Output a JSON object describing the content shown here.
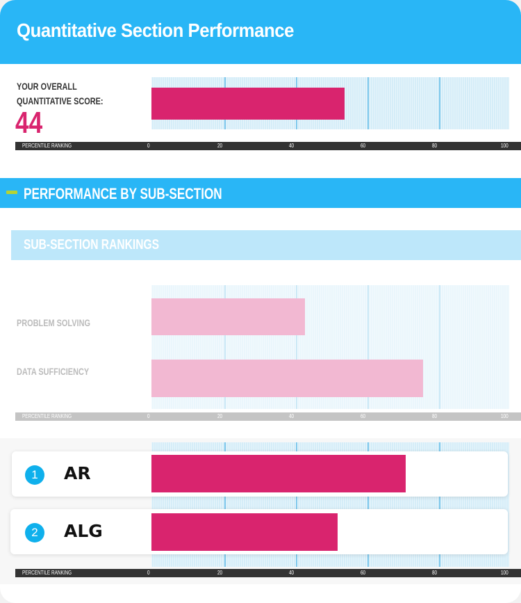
{
  "header": {
    "title": "Quantitative Section Performance"
  },
  "overall": {
    "label_line1": "YOUR OVERALL",
    "label_line2": "QUANTITATIVE SCORE:",
    "score": "44"
  },
  "section": {
    "title": "PERFORMANCE BY SUB-SECTION",
    "subtitle": "SUB-SECTION RANKINGS"
  },
  "axis": {
    "label": "PERCENTILE RANKING",
    "ticks": [
      "0",
      "20",
      "40",
      "60",
      "80",
      "100"
    ]
  },
  "colors": {
    "header": "#29b6f6",
    "bar": "#d9246e",
    "bar_faded": "#f2b8d2",
    "accent": "#b5d334"
  },
  "chart_data": [
    {
      "type": "bar",
      "orientation": "horizontal",
      "xlabel": "PERCENTILE RANKING",
      "xlim": [
        0,
        100
      ],
      "categories": [
        ""
      ],
      "values": [
        54
      ]
    },
    {
      "type": "bar",
      "orientation": "horizontal",
      "xlabel": "PERCENTILE RANKING",
      "xlim": [
        0,
        100
      ],
      "categories": [
        "PROBLEM SOLVING",
        "DATA SUFFICIENCY"
      ],
      "values": [
        43,
        76
      ]
    },
    {
      "type": "bar",
      "orientation": "horizontal",
      "xlabel": "PERCENTILE RANKING",
      "xlim": [
        0,
        100
      ],
      "categories": [
        "AR",
        "ALG"
      ],
      "ranks": [
        "1",
        "2"
      ],
      "values": [
        71,
        52
      ]
    }
  ]
}
